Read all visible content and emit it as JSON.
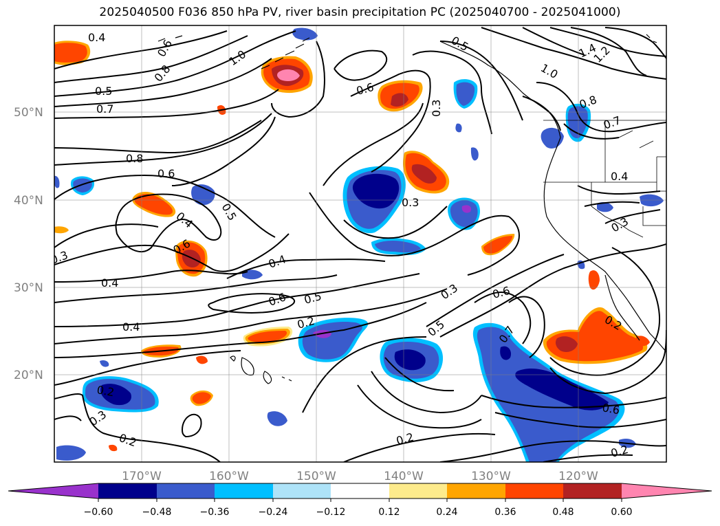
{
  "title": "2025040500 F036 850 hPa PV, river basin precipitation PC (2025040700 - 2025041000)",
  "lat_labels": [
    "50°N",
    "40°N",
    "30°N",
    "20°N"
  ],
  "lon_labels": [
    "170°W",
    "160°W",
    "150°W",
    "140°W",
    "130°W",
    "120°W"
  ],
  "colorbar": {
    "ticks": [
      "−0.60",
      "−0.48",
      "−0.36",
      "−0.24",
      "−0.12",
      "0.12",
      "0.24",
      "0.36",
      "0.48",
      "0.60"
    ],
    "colors": [
      "#9932cc",
      "#00008b",
      "#3a5bcc",
      "#00bfff",
      "#aee3f8",
      "#ffffff",
      "#fdeb8c",
      "#ffa500",
      "#ff4500",
      "#b22222",
      "#ff85b0"
    ]
  },
  "contour_labels": [
    {
      "id": "c1",
      "text": "0.4"
    },
    {
      "id": "c2",
      "text": "0.6"
    },
    {
      "id": "c3",
      "text": "0.5"
    },
    {
      "id": "c4",
      "text": "0.7"
    },
    {
      "id": "c5",
      "text": "0.8"
    },
    {
      "id": "c6",
      "text": "1.0"
    },
    {
      "id": "c7",
      "text": "0.5"
    },
    {
      "id": "c8",
      "text": "0.6"
    },
    {
      "id": "c9",
      "text": "0.3"
    },
    {
      "id": "c10",
      "text": "1.4"
    },
    {
      "id": "c11",
      "text": "1.0"
    },
    {
      "id": "c12",
      "text": "1.2"
    },
    {
      "id": "c13",
      "text": "0.8"
    },
    {
      "id": "c14",
      "text": "0.7"
    },
    {
      "id": "c15",
      "text": "0.8"
    },
    {
      "id": "c16",
      "text": "0.6"
    },
    {
      "id": "c17",
      "text": "0.4"
    },
    {
      "id": "c18",
      "text": "0.5"
    },
    {
      "id": "c19",
      "text": "0.3"
    },
    {
      "id": "c20",
      "text": "0.4"
    },
    {
      "id": "c21",
      "text": "0.3"
    },
    {
      "id": "c22",
      "text": "0.6"
    },
    {
      "id": "c23",
      "text": "0.4"
    },
    {
      "id": "c24",
      "text": "0.4"
    },
    {
      "id": "c25",
      "text": "0.6"
    },
    {
      "id": "c26",
      "text": "0.5"
    },
    {
      "id": "c27",
      "text": "0.2"
    },
    {
      "id": "c28",
      "text": "0.3"
    },
    {
      "id": "c29",
      "text": "0.6"
    },
    {
      "id": "c30",
      "text": "0.5"
    },
    {
      "id": "c31",
      "text": "0.7"
    },
    {
      "id": "c32",
      "text": "0.4"
    },
    {
      "id": "c33",
      "text": "0.2"
    },
    {
      "id": "c34",
      "text": "0.2"
    },
    {
      "id": "c35",
      "text": "0.3"
    },
    {
      "id": "c36",
      "text": "0.2"
    },
    {
      "id": "c37",
      "text": "0.2"
    },
    {
      "id": "c38",
      "text": "0.6"
    },
    {
      "id": "c39",
      "text": "0.2"
    },
    {
      "id": "c40",
      "text": "0.3"
    }
  ]
}
